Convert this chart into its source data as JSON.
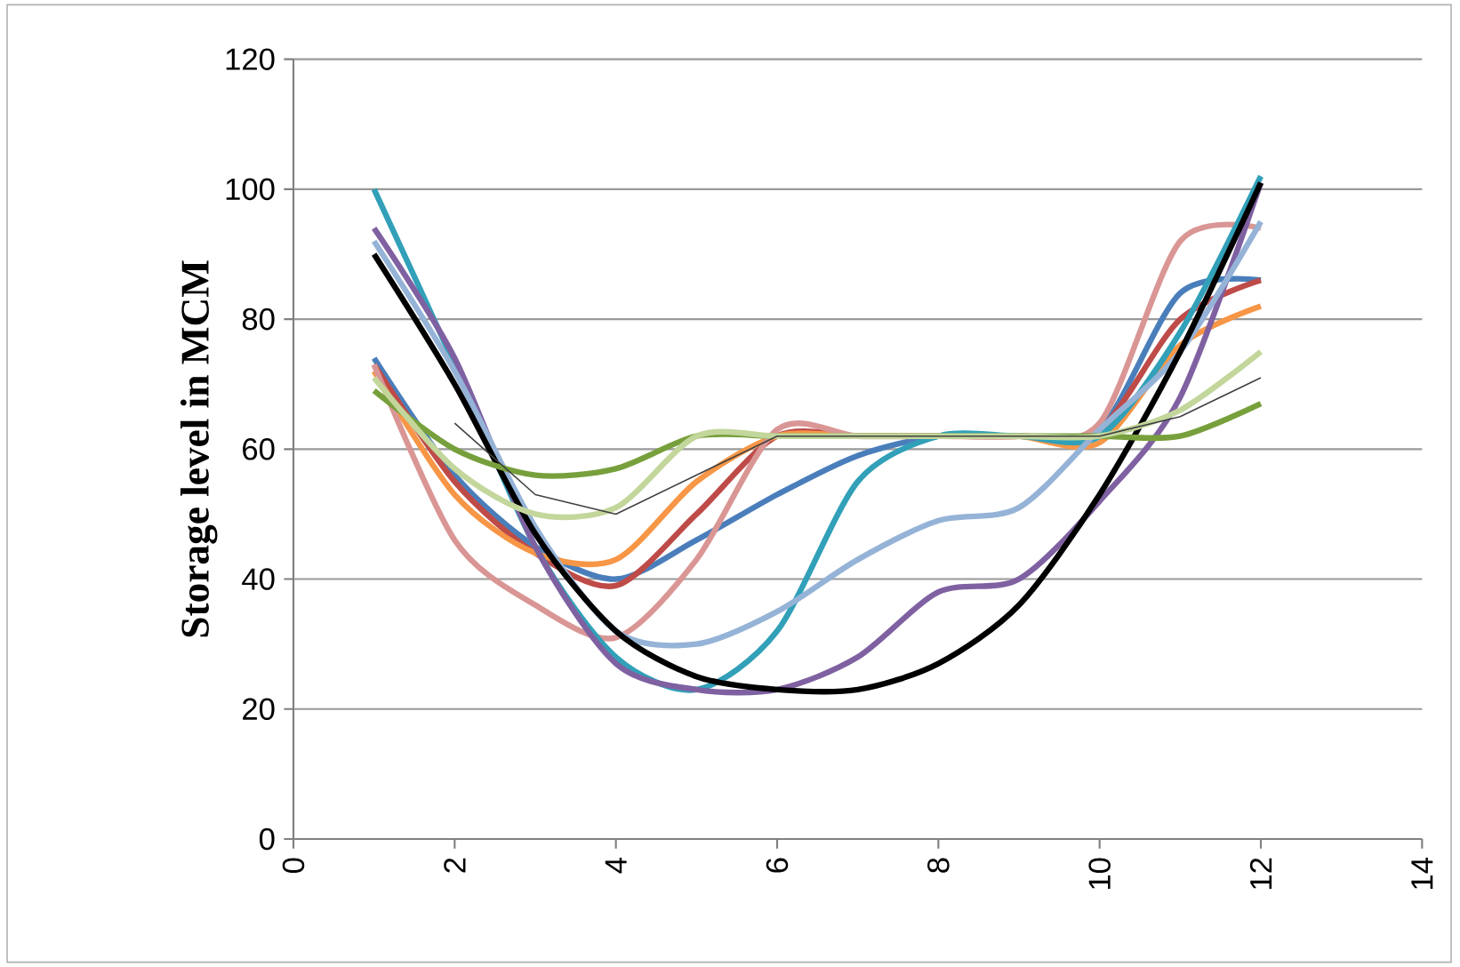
{
  "chart_data": {
    "type": "line",
    "ylabel": "Storage level in MCM",
    "x": [
      1,
      2,
      3,
      4,
      5,
      6,
      7,
      8,
      9,
      10,
      11,
      12
    ],
    "xlim": [
      0,
      14
    ],
    "xticks": [
      0,
      2,
      4,
      6,
      8,
      10,
      12,
      14
    ],
    "ylim": [
      0,
      120
    ],
    "yticks": [
      0,
      20,
      40,
      60,
      80,
      100,
      120
    ],
    "grid": "y",
    "marker": "none",
    "line_style": "solid",
    "series": [
      {
        "color": "#4a7ebb",
        "values": [
          74,
          56,
          45,
          40,
          46,
          53,
          59,
          62,
          62,
          63,
          84,
          86
        ]
      },
      {
        "color": "#be4b48",
        "values": [
          73,
          55,
          44,
          39,
          50,
          62,
          62,
          62,
          62,
          63,
          80,
          86
        ]
      },
      {
        "color": "#f79646",
        "values": [
          72,
          53,
          44,
          43,
          55,
          62,
          62,
          62,
          62,
          61,
          76,
          82
        ]
      },
      {
        "color": "#d99694",
        "values": [
          73,
          46,
          36,
          31,
          43,
          63,
          62,
          62,
          62,
          64,
          92,
          94
        ]
      },
      {
        "color": "#31a0b8",
        "values": [
          100,
          73,
          45,
          28,
          23,
          32,
          55,
          62,
          62,
          62,
          78,
          102
        ]
      },
      {
        "color": "#7f61a2",
        "values": [
          94,
          74,
          45,
          27,
          23,
          23,
          28,
          38,
          40,
          52,
          68,
          101
        ]
      },
      {
        "color": "#95b3d7",
        "values": [
          92,
          72,
          48,
          32,
          30,
          35,
          43,
          49,
          51,
          63,
          75,
          95
        ]
      },
      {
        "color": "#000000",
        "values": [
          90,
          70,
          47,
          32,
          25,
          23,
          23,
          27,
          36,
          53,
          75,
          101
        ]
      },
      {
        "color": "#77a03c",
        "values": [
          69,
          60,
          56,
          57,
          62,
          62,
          62,
          62,
          62,
          62,
          62,
          67
        ]
      },
      {
        "color": "#c3d69b",
        "values": [
          71,
          57,
          50,
          51,
          62,
          62,
          62,
          62,
          62,
          62,
          66,
          75
        ]
      },
      {
        "color": "#404040",
        "values": [
          null,
          64,
          53,
          50,
          56,
          62,
          62,
          62,
          62,
          62,
          65,
          71
        ]
      }
    ]
  }
}
